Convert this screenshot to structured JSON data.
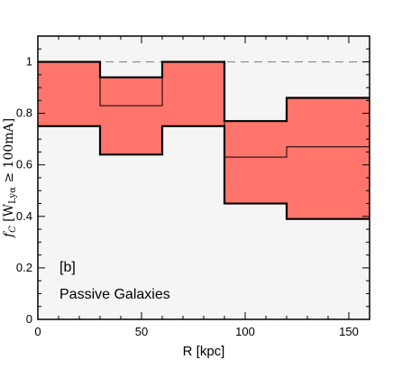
{
  "chart_data": {
    "type": "step",
    "xlabel": "R [kpc]",
    "ylabel": "f_C [W_Lyα ≥ 100mA]",
    "ylabel_parts": {
      "f": "f",
      "c": "C",
      "open": " [W",
      "sub": "Lyα",
      "rest": " ≥ 100mA]"
    },
    "xlim": [
      0,
      160
    ],
    "ylim": [
      0,
      1.1
    ],
    "xticks": [
      0,
      50,
      100,
      150
    ],
    "yticks": [
      0,
      0.2,
      0.4,
      0.6,
      0.8,
      1
    ],
    "ytick_labels": [
      "0",
      "0.2",
      "0.4",
      "0.6",
      "0.8",
      "1"
    ],
    "reference_line": 1.0,
    "bins": [
      {
        "x0": 0,
        "x1": 30,
        "value": 1.0,
        "lower": 0.75,
        "upper": 1.0
      },
      {
        "x0": 30,
        "x1": 60,
        "value": 0.83,
        "lower": 0.64,
        "upper": 0.94
      },
      {
        "x0": 60,
        "x1": 90,
        "value": 1.0,
        "lower": 0.75,
        "upper": 1.0
      },
      {
        "x0": 90,
        "x1": 120,
        "value": 0.63,
        "lower": 0.45,
        "upper": 0.77
      },
      {
        "x0": 120,
        "x1": 160,
        "value": 0.67,
        "lower": 0.39,
        "upper": 0.86
      }
    ],
    "annotations": [
      "[b]",
      "Passive Galaxies"
    ],
    "colors": {
      "band": "#ff756c",
      "background": "#f5f5f5",
      "line": "#000000",
      "reference": "#888888"
    }
  }
}
